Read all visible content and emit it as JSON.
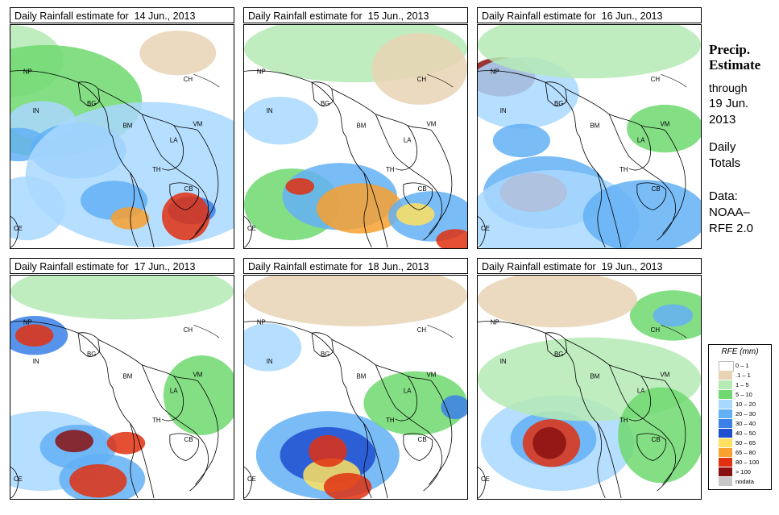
{
  "panels": [
    {
      "title": "Daily Rainfall estimate for  14 Jun., 2013"
    },
    {
      "title": "Daily Rainfall estimate for  15 Jun., 2013"
    },
    {
      "title": "Daily Rainfall estimate for  16 Jun., 2013"
    },
    {
      "title": "Daily Rainfall estimate for  17 Jun., 2013"
    },
    {
      "title": "Daily Rainfall estimate for  18 Jun., 2013"
    },
    {
      "title": "Daily Rainfall estimate for  19 Jun., 2013"
    }
  ],
  "country_labels": [
    "NP",
    "CH",
    "IN",
    "BG",
    "BM",
    "VM",
    "LA",
    "TH",
    "CB",
    "CE"
  ],
  "sidebar": {
    "title_line1": "Precip.",
    "title_line2": "Estimate",
    "through": "through",
    "date_line1": "19 Jun.",
    "date_line2": "2013",
    "daily_line1": "Daily",
    "daily_line2": "Totals",
    "data_line1": "Data:",
    "data_line2": "NOAA–",
    "data_line3": "RFE 2.0"
  },
  "legend": {
    "title": "RFE (mm)",
    "items": [
      {
        "label": "0 – 1",
        "color": "#ffffff"
      },
      {
        "label": ".1 – 1",
        "color": "#e8d3b4"
      },
      {
        "label": "1 – 5",
        "color": "#b5eab5"
      },
      {
        "label": "5 – 10",
        "color": "#6fd86f"
      },
      {
        "label": "10 – 20",
        "color": "#a9d8ff"
      },
      {
        "label": "20 – 30",
        "color": "#63b0f5"
      },
      {
        "label": "30 – 40",
        "color": "#3b80e8"
      },
      {
        "label": "40 – 50",
        "color": "#1f4fd0"
      },
      {
        "label": "50 – 65",
        "color": "#ffe060"
      },
      {
        "label": "65 – 80",
        "color": "#f8a030"
      },
      {
        "label": "80 – 100",
        "color": "#e03010"
      },
      {
        "label": "> 100",
        "color": "#8a1010"
      },
      {
        "label": "nodata",
        "color": "#c8c8c8"
      }
    ]
  }
}
